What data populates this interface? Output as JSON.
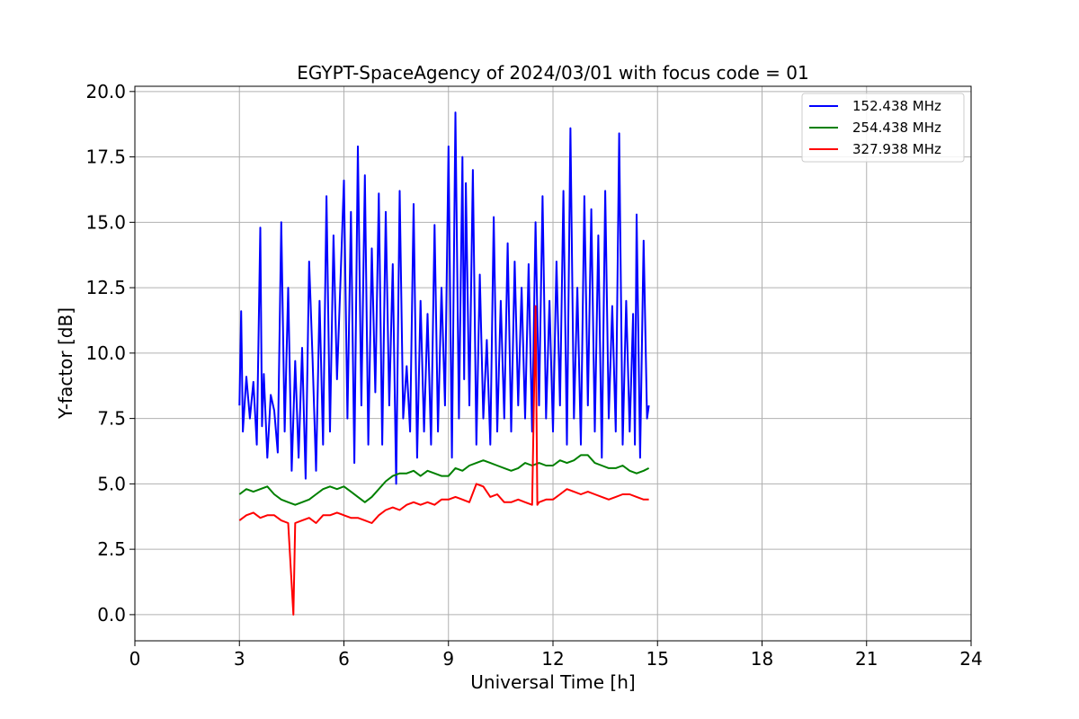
{
  "chart_data": {
    "type": "line",
    "title": "EGYPT-SpaceAgency of 2024/03/01 with focus code = 01",
    "xlabel": "Universal Time [h]",
    "ylabel": "Y-factor [dB]",
    "xlim": [
      0,
      24
    ],
    "ylim": [
      -1,
      20.2
    ],
    "xticks": [
      "0",
      "3",
      "6",
      "9",
      "12",
      "15",
      "18",
      "21",
      "24"
    ],
    "yticks": [
      "0.0",
      "2.5",
      "5.0",
      "7.5",
      "10.0",
      "12.5",
      "15.0",
      "17.5",
      "20.0"
    ],
    "grid": true,
    "legend_position": "top-right",
    "series": [
      {
        "name": "152.438 MHz",
        "color": "#0000ff",
        "x": [
          3.0,
          3.05,
          3.1,
          3.2,
          3.3,
          3.4,
          3.5,
          3.6,
          3.65,
          3.7,
          3.8,
          3.9,
          4.0,
          4.1,
          4.2,
          4.3,
          4.4,
          4.5,
          4.6,
          4.7,
          4.8,
          4.9,
          5.0,
          5.1,
          5.2,
          5.3,
          5.4,
          5.5,
          5.6,
          5.7,
          5.8,
          5.9,
          6.0,
          6.1,
          6.2,
          6.3,
          6.4,
          6.5,
          6.6,
          6.7,
          6.8,
          6.9,
          7.0,
          7.1,
          7.2,
          7.3,
          7.4,
          7.5,
          7.6,
          7.7,
          7.8,
          7.9,
          8.0,
          8.1,
          8.2,
          8.3,
          8.4,
          8.5,
          8.6,
          8.7,
          8.8,
          8.9,
          9.0,
          9.1,
          9.2,
          9.3,
          9.4,
          9.45,
          9.5,
          9.6,
          9.7,
          9.8,
          9.9,
          10.0,
          10.1,
          10.2,
          10.3,
          10.4,
          10.5,
          10.6,
          10.7,
          10.8,
          10.9,
          11.0,
          11.1,
          11.2,
          11.3,
          11.4,
          11.5,
          11.6,
          11.7,
          11.8,
          11.9,
          12.0,
          12.1,
          12.2,
          12.3,
          12.4,
          12.5,
          12.6,
          12.7,
          12.8,
          12.9,
          13.0,
          13.1,
          13.2,
          13.3,
          13.4,
          13.5,
          13.6,
          13.7,
          13.8,
          13.9,
          14.0,
          14.1,
          14.2,
          14.3,
          14.35,
          14.4,
          14.5,
          14.6,
          14.7,
          14.75
        ],
        "y": [
          8.0,
          11.6,
          7.0,
          9.1,
          7.5,
          8.9,
          6.5,
          14.8,
          7.2,
          9.2,
          6.0,
          8.4,
          7.8,
          6.2,
          15.0,
          7.0,
          12.5,
          5.5,
          9.7,
          6.0,
          10.2,
          5.2,
          13.5,
          9.8,
          5.5,
          12.0,
          6.5,
          16.0,
          7.0,
          14.5,
          9.0,
          12.7,
          16.6,
          7.5,
          15.4,
          5.8,
          17.9,
          8.0,
          16.8,
          6.5,
          14.0,
          8.5,
          16.1,
          6.5,
          15.4,
          8.0,
          13.4,
          5.0,
          16.2,
          7.5,
          9.5,
          7.0,
          15.7,
          6.0,
          12.0,
          7.0,
          11.5,
          6.5,
          14.9,
          7.0,
          12.5,
          8.0,
          17.9,
          6.0,
          19.2,
          7.5,
          17.5,
          9.0,
          16.5,
          8.0,
          17.0,
          6.5,
          13.0,
          7.5,
          10.5,
          6.5,
          15.2,
          7.0,
          12.0,
          7.5,
          14.2,
          7.0,
          13.5,
          8.0,
          12.5,
          7.5,
          13.4,
          7.0,
          15.0,
          8.0,
          16.0,
          7.5,
          12.0,
          7.0,
          13.5,
          8.0,
          16.2,
          6.5,
          18.6,
          7.5,
          12.5,
          6.5,
          16.0,
          8.0,
          15.5,
          7.0,
          14.5,
          6.0,
          16.2,
          7.5,
          11.8,
          7.0,
          18.4,
          6.5,
          12.0,
          7.0,
          11.5,
          6.5,
          15.3,
          6.0,
          14.3,
          7.5,
          8.0
        ]
      },
      {
        "name": "254.438 MHz",
        "color": "#008000",
        "x": [
          3.0,
          3.2,
          3.4,
          3.6,
          3.8,
          4.0,
          4.2,
          4.4,
          4.6,
          4.8,
          5.0,
          5.2,
          5.4,
          5.6,
          5.8,
          6.0,
          6.2,
          6.4,
          6.6,
          6.8,
          7.0,
          7.2,
          7.4,
          7.6,
          7.8,
          8.0,
          8.2,
          8.4,
          8.6,
          8.8,
          9.0,
          9.2,
          9.4,
          9.6,
          9.8,
          10.0,
          10.2,
          10.4,
          10.6,
          10.8,
          11.0,
          11.2,
          11.4,
          11.6,
          11.8,
          12.0,
          12.2,
          12.4,
          12.6,
          12.8,
          13.0,
          13.2,
          13.4,
          13.6,
          13.8,
          14.0,
          14.2,
          14.4,
          14.6,
          14.75
        ],
        "y": [
          4.6,
          4.8,
          4.7,
          4.8,
          4.9,
          4.6,
          4.4,
          4.3,
          4.2,
          4.3,
          4.4,
          4.6,
          4.8,
          4.9,
          4.8,
          4.9,
          4.7,
          4.5,
          4.3,
          4.5,
          4.8,
          5.1,
          5.3,
          5.4,
          5.4,
          5.5,
          5.3,
          5.5,
          5.4,
          5.3,
          5.3,
          5.6,
          5.5,
          5.7,
          5.8,
          5.9,
          5.8,
          5.7,
          5.6,
          5.5,
          5.6,
          5.8,
          5.7,
          5.8,
          5.7,
          5.7,
          5.9,
          5.8,
          5.9,
          6.1,
          6.1,
          5.8,
          5.7,
          5.6,
          5.6,
          5.7,
          5.5,
          5.4,
          5.5,
          5.6
        ]
      },
      {
        "name": "327.938 MHz",
        "color": "#ff0000",
        "x": [
          3.0,
          3.2,
          3.4,
          3.6,
          3.8,
          4.0,
          4.2,
          4.4,
          4.55,
          4.6,
          4.8,
          5.0,
          5.2,
          5.4,
          5.6,
          5.8,
          6.0,
          6.2,
          6.4,
          6.6,
          6.8,
          7.0,
          7.2,
          7.4,
          7.6,
          7.8,
          8.0,
          8.2,
          8.4,
          8.6,
          8.8,
          9.0,
          9.2,
          9.4,
          9.6,
          9.8,
          10.0,
          10.2,
          10.4,
          10.6,
          10.8,
          11.0,
          11.2,
          11.4,
          11.5,
          11.55,
          11.6,
          11.8,
          12.0,
          12.2,
          12.4,
          12.6,
          12.8,
          13.0,
          13.2,
          13.4,
          13.6,
          13.8,
          14.0,
          14.2,
          14.4,
          14.6,
          14.75
        ],
        "y": [
          3.6,
          3.8,
          3.9,
          3.7,
          3.8,
          3.8,
          3.6,
          3.5,
          0.0,
          3.5,
          3.6,
          3.7,
          3.5,
          3.8,
          3.8,
          3.9,
          3.8,
          3.7,
          3.7,
          3.6,
          3.5,
          3.8,
          4.0,
          4.1,
          4.0,
          4.2,
          4.3,
          4.2,
          4.3,
          4.2,
          4.4,
          4.4,
          4.5,
          4.4,
          4.3,
          5.0,
          4.9,
          4.5,
          4.6,
          4.3,
          4.3,
          4.4,
          4.3,
          4.2,
          11.8,
          4.2,
          4.3,
          4.4,
          4.4,
          4.6,
          4.8,
          4.7,
          4.6,
          4.7,
          4.6,
          4.5,
          4.4,
          4.5,
          4.6,
          4.6,
          4.5,
          4.4,
          4.4
        ]
      }
    ]
  }
}
